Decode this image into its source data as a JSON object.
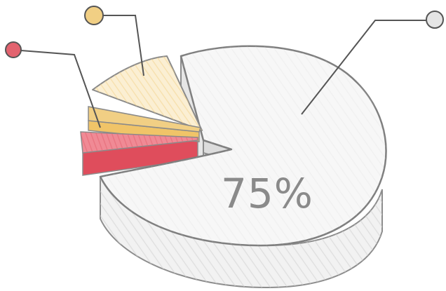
{
  "chart_data": {
    "type": "pie",
    "title": "",
    "labels": [
      "",
      "",
      ""
    ],
    "values": [
      75,
      13,
      12
    ],
    "value_label": "75%",
    "colors": [
      "#efefef",
      "#f1cf84",
      "#e3636f"
    ],
    "marker_colors": [
      "#e5e5e5",
      "#f1cf84",
      "#e3636f"
    ],
    "legend": "none",
    "style": "3d-exploded-sketch"
  }
}
